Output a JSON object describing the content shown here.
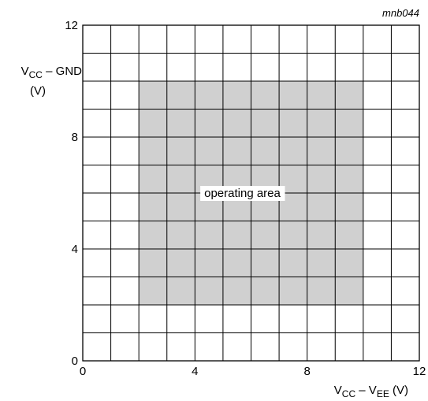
{
  "chart_data": {
    "type": "area",
    "figure_ref": "mnb044",
    "xlabel": {
      "main": "V",
      "sub1": "CC",
      "mid": " – V",
      "sub2": "EE",
      "unit": " (V)"
    },
    "ylabel": {
      "main": "V",
      "sub": "CC",
      "rest": " – GND",
      "unit": "(V)"
    },
    "xlim": [
      0,
      12
    ],
    "ylim": [
      0,
      12
    ],
    "grid_step": 1,
    "x_ticks": [
      0,
      4,
      8,
      12
    ],
    "y_ticks": [
      0,
      4,
      8,
      12
    ],
    "grid": true,
    "regions": [
      {
        "label": "operating area",
        "x": [
          2,
          10
        ],
        "y": [
          2,
          10
        ],
        "color": "#d0d0d0"
      }
    ]
  }
}
